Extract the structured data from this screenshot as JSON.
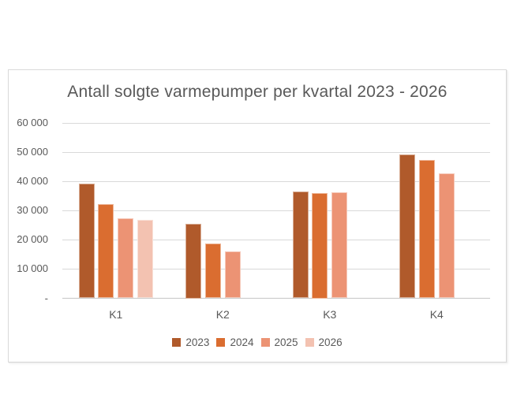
{
  "page": {
    "background": "#FFFFFF"
  },
  "chart_data": {
    "type": "bar",
    "title": "Antall solgte varmepumper per kvartal 2023 - 2026",
    "categories": [
      "K1",
      "K2",
      "K3",
      "K4"
    ],
    "series": [
      {
        "name": "2023",
        "color": "#B05A2B",
        "values": [
          39200,
          25500,
          36500,
          49200
        ]
      },
      {
        "name": "2024",
        "color": "#DA6D30",
        "values": [
          32100,
          18700,
          36000,
          47300
        ]
      },
      {
        "name": "2025",
        "color": "#EC9374",
        "values": [
          27300,
          16000,
          36200,
          42700
        ]
      },
      {
        "name": "2026",
        "color": "#F3C2B1",
        "values": [
          26700,
          null,
          null,
          null
        ]
      }
    ],
    "ylabel": "",
    "xlabel": "",
    "ylim": [
      0,
      60000
    ],
    "ytick_step": 10000,
    "ytick_labels": [
      "-",
      "10 000",
      "20 000",
      "30 000",
      "40 000",
      "50 000",
      "60 000"
    ],
    "grid": "horizontal",
    "legend_position": "bottom",
    "colors": {
      "text": "#595959",
      "gridline": "#D9D9D9",
      "axis_line": "#C6C6C6",
      "frame_border": "#D9D9D9",
      "background": "#FFFFFF"
    }
  }
}
